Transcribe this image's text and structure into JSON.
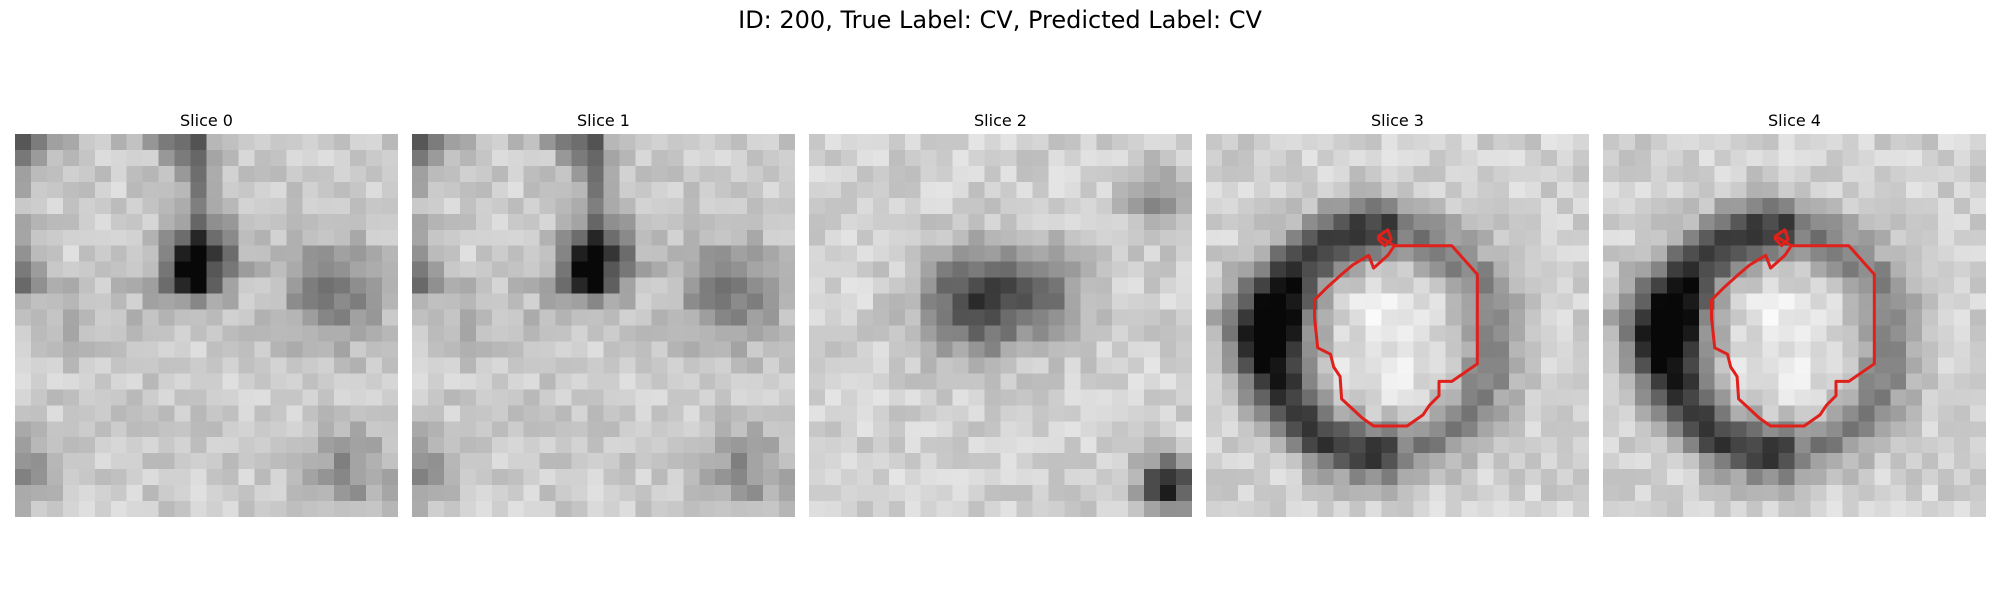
{
  "figure": {
    "title": "ID: 200, True Label: CV, Predicted Label: CV"
  },
  "slices": [
    {
      "label": "Slice 0",
      "has_contour": false
    },
    {
      "label": "Slice 1",
      "has_contour": false
    },
    {
      "label": "Slice 2",
      "has_contour": false
    },
    {
      "label": "Slice 3",
      "has_contour": true
    },
    {
      "label": "Slice 4",
      "has_contour": true
    }
  ],
  "colors": {
    "contour": "#e0201b"
  },
  "icons": []
}
